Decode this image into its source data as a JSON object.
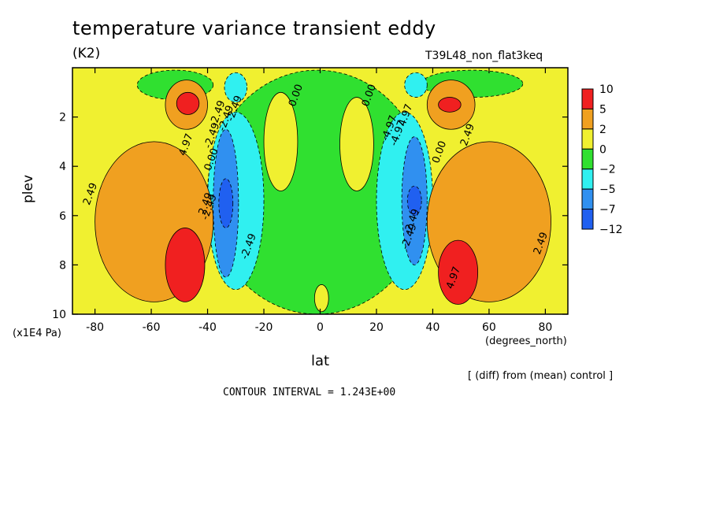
{
  "title": "temperature variance transient eddy",
  "units": "(K2)",
  "run_name": "T39L48_non_flat3keq",
  "diff_note": "[ (diff) from (mean) control ]",
  "contour_interval": "CONTOUR INTERVAL = 1.243E+00",
  "chart_data": {
    "type": "contour",
    "xlabel": "lat",
    "x_unit": "(degrees_north)",
    "ylabel": "plev",
    "y_unit": "(x1E4 Pa)",
    "xlim": [
      -88,
      88
    ],
    "ylim": [
      10,
      0
    ],
    "x_ticks": [
      -80,
      -60,
      -40,
      -20,
      0,
      20,
      40,
      60,
      80
    ],
    "y_ticks": [
      2,
      4,
      6,
      8,
      10
    ],
    "x_tick_labels": [
      "-80",
      "-60",
      "-40",
      "-20",
      "0",
      "20",
      "40",
      "60",
      "80"
    ],
    "y_tick_labels": [
      "2",
      "4",
      "6",
      "8",
      "10"
    ],
    "colorbar": {
      "levels": [
        10,
        5,
        2,
        0,
        -2,
        -5,
        -7,
        -12
      ],
      "labels": [
        "10",
        "5",
        "2",
        "0",
        "−2",
        "−5",
        "−7",
        "−12"
      ],
      "colors": [
        "#f02020",
        "#f0a020",
        "#f0f030",
        "#30e030",
        "#30f0f0",
        "#3090f0",
        "#2060f0"
      ]
    },
    "contour_labels": [
      "2.49",
      "4.97",
      "0.00",
      "-2.49",
      "0.00",
      "0.00",
      "4.97",
      "2.49",
      "-2.49",
      "2.49",
      "4.97",
      "-4.97",
      "2.49",
      "-2.49",
      "0.00",
      "-2.49",
      "-2.49",
      "-2.49",
      "-4.97",
      "-2.49",
      "-2.49"
    ],
    "regions": [
      {
        "value": 1.0,
        "fill": "#f0f030",
        "lat": [
          -88,
          88
        ],
        "plev": [
          0,
          10
        ]
      },
      {
        "value": -1.0,
        "fill": "#30e030",
        "lat": [
          -40,
          38
        ],
        "plev": [
          0.1,
          10
        ]
      },
      {
        "value": -1.0,
        "fill": "#30e030",
        "lat": [
          -65,
          -38
        ],
        "plev": [
          0.1,
          1.3
        ]
      },
      {
        "value": -1.0,
        "fill": "#30e030",
        "lat": [
          36,
          72
        ],
        "plev": [
          0.1,
          1.2
        ]
      },
      {
        "value": 1.0,
        "fill": "#f0f030",
        "lat": [
          -20,
          -8
        ],
        "plev": [
          1.0,
          5.0
        ]
      },
      {
        "value": 1.0,
        "fill": "#f0f030",
        "lat": [
          7,
          19
        ],
        "plev": [
          1.2,
          5.0
        ]
      },
      {
        "value": 1.0,
        "fill": "#f0f030",
        "lat": [
          -2,
          3
        ],
        "plev": [
          8.8,
          9.9
        ]
      },
      {
        "value": -3.5,
        "fill": "#30f0f0",
        "lat": [
          -40,
          -20
        ],
        "plev": [
          1.8,
          9.0
        ]
      },
      {
        "value": -3.5,
        "fill": "#30f0f0",
        "lat": [
          20,
          40
        ],
        "plev": [
          1.8,
          9.0
        ]
      },
      {
        "value": -3.5,
        "fill": "#30f0f0",
        "lat": [
          -34,
          -26
        ],
        "plev": [
          0.2,
          1.4
        ]
      },
      {
        "value": -3.5,
        "fill": "#30f0f0",
        "lat": [
          30,
          38
        ],
        "plev": [
          0.2,
          1.2
        ]
      },
      {
        "value": -6.0,
        "fill": "#3090f0",
        "lat": [
          -38,
          -29
        ],
        "plev": [
          2.5,
          8.5
        ]
      },
      {
        "value": -6.0,
        "fill": "#3090f0",
        "lat": [
          29,
          38
        ],
        "plev": [
          2.8,
          8.0
        ]
      },
      {
        "value": -8.0,
        "fill": "#2060f0",
        "lat": [
          -36,
          -31
        ],
        "plev": [
          4.5,
          6.5
        ]
      },
      {
        "value": -8.0,
        "fill": "#2060f0",
        "lat": [
          31,
          36
        ],
        "plev": [
          4.8,
          6.0
        ]
      },
      {
        "value": 3.5,
        "fill": "#f0a020",
        "lat": [
          -80,
          -38
        ],
        "plev": [
          3.0,
          9.5
        ]
      },
      {
        "value": 3.5,
        "fill": "#f0a020",
        "lat": [
          38,
          82
        ],
        "plev": [
          3.0,
          9.5
        ]
      },
      {
        "value": 3.5,
        "fill": "#f0a020",
        "lat": [
          -55,
          -40
        ],
        "plev": [
          0.5,
          2.5
        ]
      },
      {
        "value": 3.5,
        "fill": "#f0a020",
        "lat": [
          38,
          55
        ],
        "plev": [
          0.5,
          2.5
        ]
      },
      {
        "value": 7.0,
        "fill": "#f02020",
        "lat": [
          -55,
          -41
        ],
        "plev": [
          6.5,
          9.5
        ]
      },
      {
        "value": 7.0,
        "fill": "#f02020",
        "lat": [
          42,
          56
        ],
        "plev": [
          7.0,
          9.6
        ]
      },
      {
        "value": 7.0,
        "fill": "#f02020",
        "lat": [
          -51,
          -43
        ],
        "plev": [
          1.0,
          1.9
        ]
      },
      {
        "value": 7.0,
        "fill": "#f02020",
        "lat": [
          42,
          50
        ],
        "plev": [
          1.2,
          1.8
        ]
      }
    ]
  }
}
